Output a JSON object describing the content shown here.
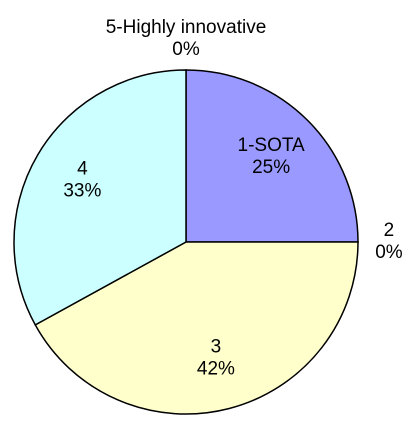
{
  "chart_data": {
    "type": "pie",
    "categories": [
      "1-SOTA",
      "2",
      "3",
      "4",
      "5-Highly innovative"
    ],
    "values": [
      25,
      0,
      42,
      33,
      0
    ],
    "value_labels": [
      "25%",
      "0%",
      "42%",
      "33%",
      "0%"
    ],
    "colors": [
      "#9999ff",
      "#993366",
      "#ffffcc",
      "#ccffff",
      "#660066"
    ]
  }
}
